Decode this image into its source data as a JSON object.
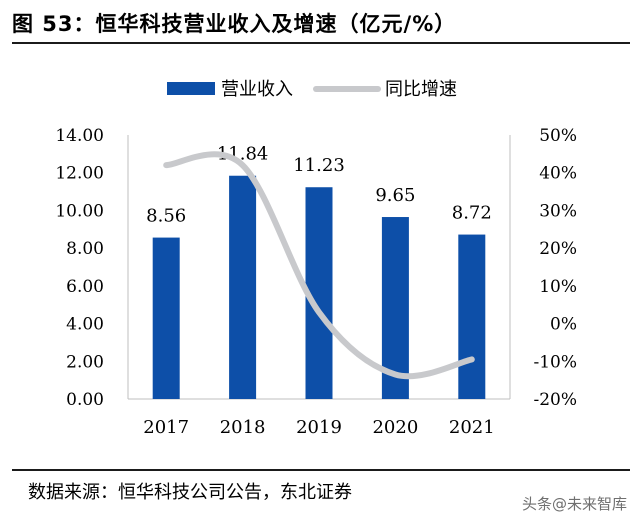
{
  "figure": {
    "title": "图 53：恒华科技营业收入及增速（亿元/%）",
    "source": "数据来源：恒华科技公司公告，东北证券",
    "watermark": "头条@未来智库"
  },
  "colors": {
    "bar": "#0d4fa8",
    "line": "#c8c9cc",
    "axis": "#bfbfbf",
    "rule": "#1b1b1b"
  },
  "chart_data": {
    "type": "bar",
    "categories": [
      "2017",
      "2018",
      "2019",
      "2020",
      "2021"
    ],
    "series": [
      {
        "name": "营业收入",
        "type": "bar",
        "axis": "left",
        "values": [
          8.56,
          11.84,
          11.23,
          9.65,
          8.72
        ],
        "data_labels": [
          "8.56",
          "11.84",
          "11.23",
          "9.65",
          "8.72"
        ]
      },
      {
        "name": "同比增速",
        "type": "line",
        "axis": "right",
        "smooth": true,
        "values": [
          42,
          42,
          3,
          -13.5,
          -9.5
        ]
      }
    ],
    "left_axis": {
      "ylim": [
        0,
        14
      ],
      "ticks": [
        0,
        2,
        4,
        6,
        8,
        10,
        12,
        14
      ],
      "tick_labels": [
        "0.00",
        "2.00",
        "4.00",
        "6.00",
        "8.00",
        "10.00",
        "12.00",
        "14.00"
      ]
    },
    "right_axis": {
      "ylim": [
        -20,
        50
      ],
      "ticks": [
        -20,
        -10,
        0,
        10,
        20,
        30,
        40,
        50
      ],
      "tick_labels": [
        "-20%",
        "-10%",
        "0%",
        "10%",
        "20%",
        "30%",
        "40%",
        "50%"
      ]
    },
    "legend": {
      "position": "top-center",
      "entries": [
        "营业收入",
        "同比增速"
      ]
    },
    "grid": false
  }
}
